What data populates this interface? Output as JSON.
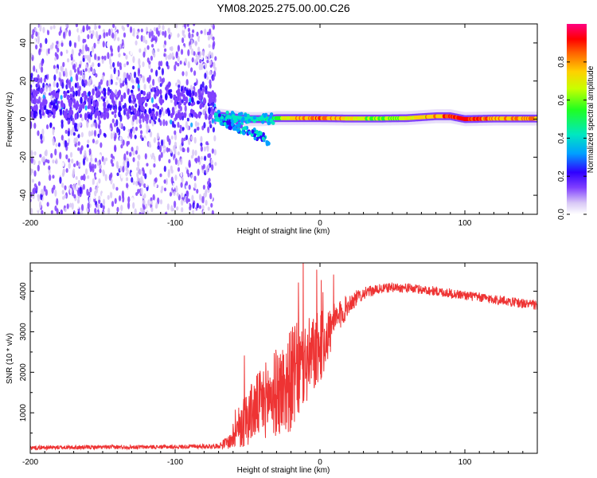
{
  "title": "YM08.2025.275.00.00.C26",
  "chart_data": [
    {
      "type": "heatmap",
      "title": "YM08.2025.275.00.00.C26",
      "xlabel": "Height of straight line (km)",
      "ylabel": "Frequency (Hz)",
      "xlim": [
        -200,
        150
      ],
      "ylim": [
        -50,
        50
      ],
      "xticks": [
        -200,
        -100,
        0,
        100
      ],
      "xtick_labels": [
        "-200",
        "-100",
        "0",
        "100"
      ],
      "yticks": [
        -40,
        -20,
        0,
        20,
        40
      ],
      "ytick_labels": [
        "-40",
        "-20",
        "0",
        "20",
        "40"
      ],
      "noise_region_x": [
        -200,
        -72
      ],
      "noise_band_center_hz": 8,
      "ridge": {
        "x": [
          -72,
          -60,
          -50,
          -40,
          -30,
          -20,
          -10,
          0,
          20,
          40,
          60,
          80,
          90,
          100,
          120,
          150
        ],
        "freq_hz": [
          2,
          1,
          0,
          0,
          0.5,
          0.5,
          0.5,
          0.5,
          0.3,
          0.3,
          0.5,
          1.5,
          1.5,
          0,
          0.3,
          0.3
        ],
        "amplitude": [
          0.45,
          0.45,
          0.5,
          0.55,
          0.6,
          0.8,
          0.85,
          0.9,
          0.75,
          0.65,
          0.7,
          0.85,
          0.9,
          0.95,
          0.85,
          0.85
        ]
      },
      "lower_branch": {
        "x": [
          -70,
          -60,
          -50,
          -40,
          -35
        ],
        "freq_hz": [
          0,
          -3,
          -6,
          -9,
          -12
        ]
      },
      "colorbar": {
        "label": "Normalized spectral amplitude",
        "range": [
          0,
          1
        ],
        "ticks": [
          "0.0",
          "0.2",
          "0.4",
          "0.6",
          "0.8"
        ]
      }
    },
    {
      "type": "line",
      "xlabel": "Height of straight line (km)",
      "ylabel": "SNR (10 * v/v)",
      "xlim": [
        -200,
        150
      ],
      "ylim": [
        0,
        4700
      ],
      "xticks": [
        -200,
        -100,
        0,
        100
      ],
      "xtick_labels": [
        "-200",
        "-100",
        "0",
        "100"
      ],
      "yticks": [
        1000,
        2000,
        3000,
        4000
      ],
      "ytick_labels": [
        "1000",
        "2000",
        "3000",
        "4000"
      ],
      "color": "#ee3333",
      "series": [
        {
          "name": "SNR",
          "x": [
            -200,
            -150,
            -100,
            -70,
            -62,
            -55,
            -45,
            -35,
            -25,
            -18,
            -10,
            0,
            10,
            20,
            30,
            40,
            50,
            60,
            80,
            100,
            120,
            150
          ],
          "y": [
            140,
            150,
            160,
            180,
            300,
            700,
            1100,
            1400,
            1600,
            1900,
            2200,
            2600,
            3200,
            3700,
            3950,
            4050,
            4100,
            4080,
            4000,
            3900,
            3800,
            3650
          ],
          "noise_amplitude": [
            50,
            50,
            50,
            60,
            200,
            600,
            800,
            1000,
            1200,
            1300,
            1100,
            900,
            500,
            250,
            150,
            120,
            120,
            120,
            120,
            120,
            120,
            120
          ]
        }
      ]
    }
  ]
}
